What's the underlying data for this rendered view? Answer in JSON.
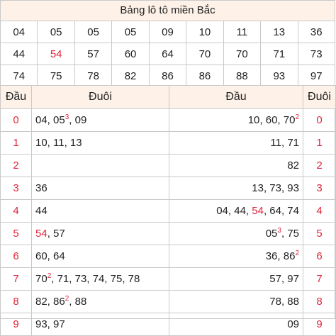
{
  "title": "Bảng lô tô miền Bắc",
  "numbers": [
    [
      "04",
      "05",
      "05",
      "05",
      "09",
      "10",
      "11",
      "13",
      "36"
    ],
    [
      "44",
      "54",
      "57",
      "60",
      "64",
      "70",
      "70",
      "71",
      "73"
    ],
    [
      "74",
      "75",
      "78",
      "82",
      "86",
      "86",
      "88",
      "93",
      "97"
    ]
  ],
  "highlight_color": "#e0263b",
  "headers": {
    "dau_left": "Đầu",
    "duoi_left": "Đuôi",
    "dau_right": "Đầu",
    "duoi_right": "Đuôi"
  },
  "rows": [
    {
      "dau": "0",
      "duoi": [
        {
          "t": "04, 05"
        },
        {
          "sup": "3"
        },
        {
          "t": ", 09"
        }
      ],
      "right": [
        {
          "t": "10, 60, 70"
        },
        {
          "sup": "2"
        }
      ]
    },
    {
      "dau": "1",
      "duoi": [
        {
          "t": "10, 11, 13"
        }
      ],
      "right": [
        {
          "t": "11, 71"
        }
      ]
    },
    {
      "dau": "2",
      "duoi": [],
      "right": [
        {
          "t": "82"
        }
      ]
    },
    {
      "dau": "3",
      "duoi": [
        {
          "t": "36"
        }
      ],
      "right": [
        {
          "t": "13, 73, 93"
        }
      ]
    },
    {
      "dau": "4",
      "duoi": [
        {
          "t": "44"
        }
      ],
      "right": [
        {
          "t": "04, 44, "
        },
        {
          "red": "54"
        },
        {
          "t": ", 64, 74"
        }
      ]
    },
    {
      "dau": "5",
      "duoi": [
        {
          "red": "54"
        },
        {
          "t": ", 57"
        }
      ],
      "right": [
        {
          "t": "05"
        },
        {
          "sup": "3"
        },
        {
          "t": ", 75"
        }
      ]
    },
    {
      "dau": "6",
      "duoi": [
        {
          "t": "60, 64"
        }
      ],
      "right": [
        {
          "t": "36, 86"
        },
        {
          "sup": "2"
        }
      ]
    },
    {
      "dau": "7",
      "duoi": [
        {
          "t": "70"
        },
        {
          "sup": "2"
        },
        {
          "t": ", 71, 73, 74, 75, 78"
        }
      ],
      "right": [
        {
          "t": "57, 97"
        }
      ]
    },
    {
      "dau": "8",
      "duoi": [
        {
          "t": "82, 86"
        },
        {
          "sup": "2"
        },
        {
          "t": ", 88"
        }
      ],
      "right": [
        {
          "t": "78, 88"
        }
      ]
    },
    {
      "dau": "9",
      "duoi": [
        {
          "t": "93, 97"
        }
      ],
      "right": [
        {
          "t": "09"
        }
      ]
    }
  ]
}
